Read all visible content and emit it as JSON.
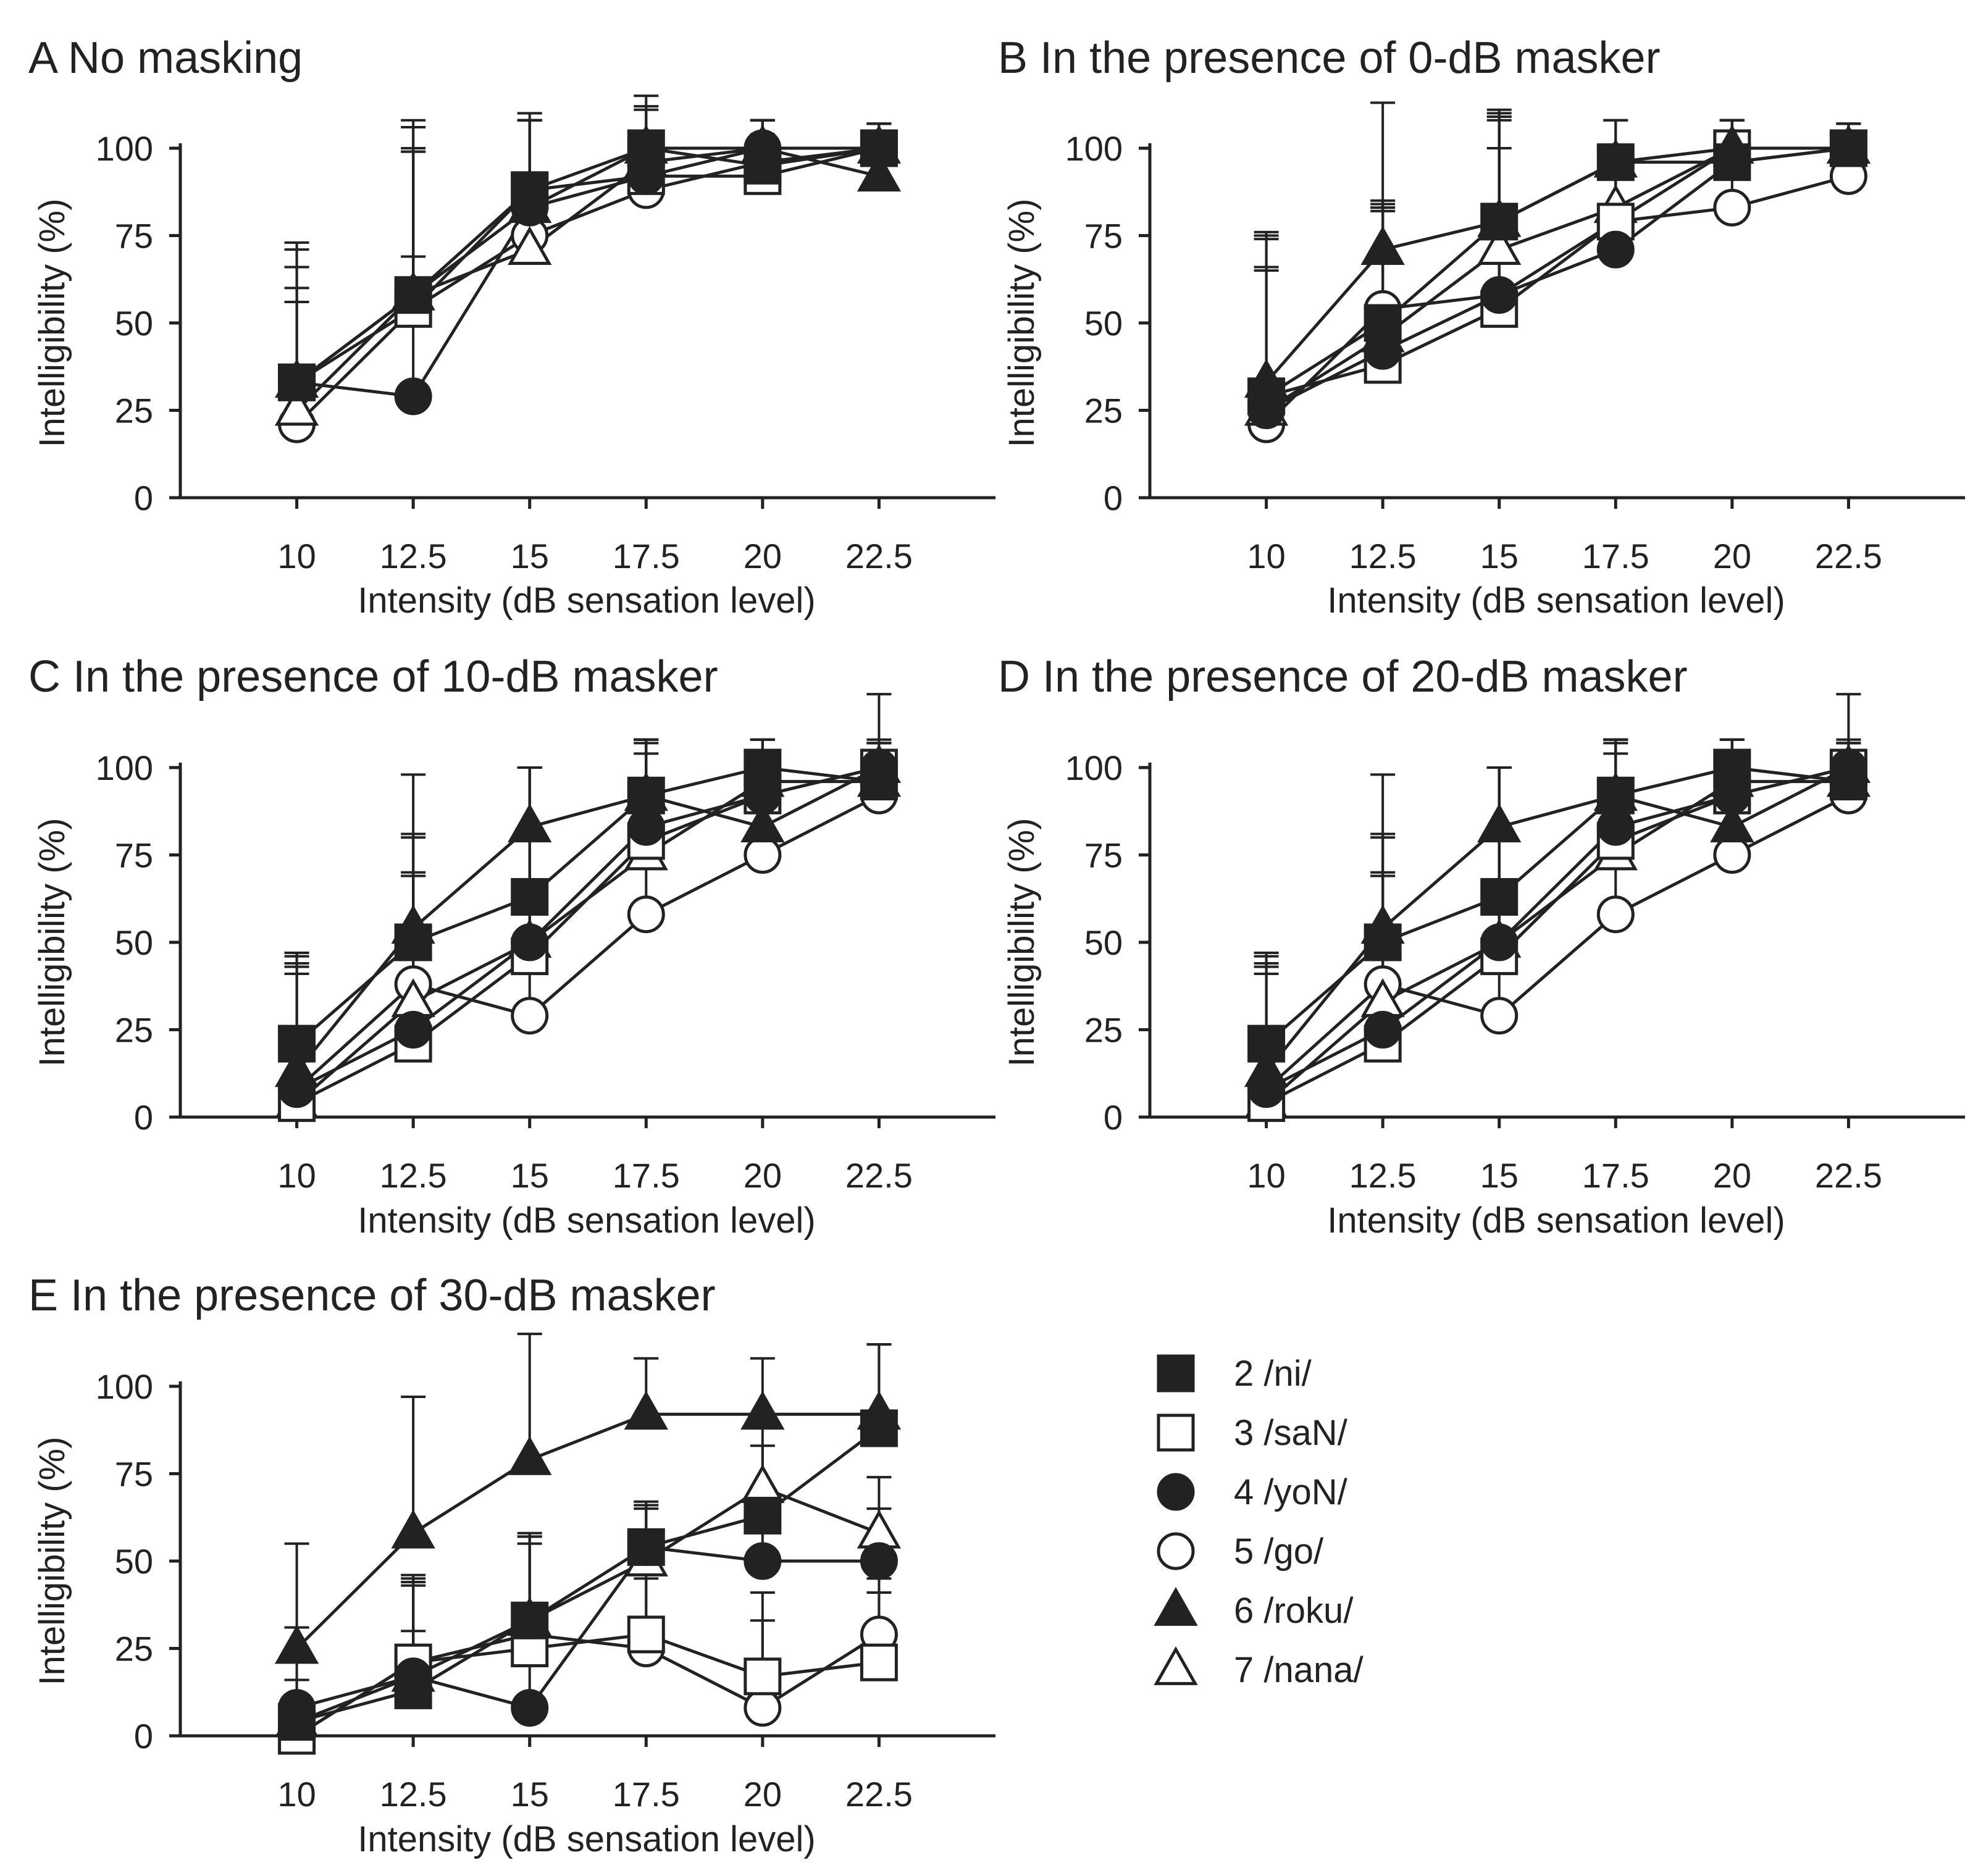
{
  "figure": {
    "legend": {
      "entries": [
        {
          "series": "ni",
          "label": "2 /ni/"
        },
        {
          "series": "saN",
          "label": "3 /saN/"
        },
        {
          "series": "yoN",
          "label": "4 /yoN/"
        },
        {
          "series": "go",
          "label": "5 /go/"
        },
        {
          "series": "roku",
          "label": "6 /roku/"
        },
        {
          "series": "nana",
          "label": "7 /nana/"
        }
      ]
    },
    "series_markers": {
      "ni": {
        "shape": "square",
        "filled": true
      },
      "saN": {
        "shape": "square",
        "filled": false
      },
      "yoN": {
        "shape": "circle",
        "filled": true
      },
      "go": {
        "shape": "circle",
        "filled": false
      },
      "roku": {
        "shape": "triangle",
        "filled": true
      },
      "nana": {
        "shape": "triangle",
        "filled": false
      }
    },
    "colors": {
      "ink": "#222222",
      "background": "#ffffff"
    }
  },
  "chart_data": [
    {
      "id": "A",
      "type": "line",
      "title": "A No masking",
      "xlabel": "Intensity (dB sensation level)",
      "ylabel": "Intelligibility (%)",
      "x": [
        10,
        12.5,
        15,
        17.5,
        20,
        22.5
      ],
      "x_tick_labels": [
        "10",
        "12.5",
        "15",
        "17.5",
        "20",
        "22.5"
      ],
      "y_ticks": [
        0,
        25,
        50,
        75,
        100
      ],
      "xlim": [
        7.5,
        25
      ],
      "ylim": [
        0,
        100
      ],
      "series": [
        {
          "name": "ni",
          "values": [
            33,
            58,
            88,
            100,
            95,
            100
          ],
          "errors": [
            40,
            42,
            22,
            15,
            13,
            7
          ]
        },
        {
          "name": "saN",
          "values": [
            33,
            54,
            88,
            92,
            92,
            100
          ],
          "errors": [
            38,
            45,
            20,
            12,
            8,
            7
          ]
        },
        {
          "name": "yoN",
          "values": [
            33,
            29,
            83,
            92,
            100,
            100
          ],
          "errors": [
            33,
            40,
            25,
            12,
            8,
            7
          ]
        },
        {
          "name": "go",
          "values": [
            21,
            54,
            75,
            88,
            96,
            100
          ],
          "errors": [
            35,
            45,
            33,
            12,
            8,
            7
          ]
        },
        {
          "name": "roku",
          "values": [
            33,
            58,
            83,
            100,
            100,
            92
          ],
          "errors": [
            33,
            50,
            25,
            12,
            8,
            7
          ]
        },
        {
          "name": "nana",
          "values": [
            25,
            58,
            71,
            96,
            100,
            100
          ],
          "errors": [
            35,
            48,
            37,
            15,
            8,
            7
          ]
        }
      ]
    },
    {
      "id": "B",
      "type": "line",
      "title": "B In the presence of 0-dB masker",
      "xlabel": "Intensity (dB sensation level)",
      "ylabel": "Intelligibility (%)",
      "x": [
        10,
        12.5,
        15,
        17.5,
        20,
        22.5
      ],
      "x_tick_labels": [
        "10",
        "12.5",
        "15",
        "17.5",
        "20",
        "22.5"
      ],
      "y_ticks": [
        0,
        25,
        50,
        75,
        100
      ],
      "xlim": [
        7.5,
        25
      ],
      "ylim": [
        0,
        100
      ],
      "series": [
        {
          "name": "ni",
          "values": [
            29,
            50,
            79,
            96,
            96,
            100
          ],
          "errors": [
            47,
            33,
            30,
            12,
            12,
            7
          ]
        },
        {
          "name": "saN",
          "values": [
            29,
            38,
            54,
            79,
            100,
            100
          ],
          "errors": [
            45,
            46,
            54,
            15,
            8,
            7
          ]
        },
        {
          "name": "yoN",
          "values": [
            25,
            42,
            58,
            71,
            96,
            100
          ],
          "errors": [
            50,
            43,
            52,
            22,
            12,
            7
          ]
        },
        {
          "name": "go",
          "values": [
            21,
            54,
            58,
            79,
            83,
            92
          ],
          "errors": [
            45,
            28,
            42,
            22,
            12,
            7
          ]
        },
        {
          "name": "roku",
          "values": [
            33,
            71,
            79,
            96,
            100,
            100
          ],
          "errors": [
            42,
            42,
            30,
            12,
            8,
            7
          ]
        },
        {
          "name": "nana",
          "values": [
            25,
            46,
            71,
            83,
            100,
            100
          ],
          "errors": [
            40,
            37,
            40,
            15,
            8,
            7
          ]
        }
      ]
    },
    {
      "id": "C",
      "type": "line",
      "title": "C In the presence of 10-dB masker",
      "xlabel": "Intensity (dB sensation level)",
      "ylabel": "Intelligibility (%)",
      "x": [
        10,
        12.5,
        15,
        17.5,
        20,
        22.5
      ],
      "x_tick_labels": [
        "10",
        "12.5",
        "15",
        "17.5",
        "20",
        "22.5"
      ],
      "y_ticks": [
        0,
        25,
        50,
        75,
        100
      ],
      "xlim": [
        7.5,
        25
      ],
      "ylim": [
        0,
        100
      ],
      "series": [
        {
          "name": "ni",
          "values": [
            21,
            50,
            63,
            92,
            100,
            96
          ],
          "errors": [
            26,
            30,
            37,
            16,
            8,
            11
          ]
        },
        {
          "name": "saN",
          "values": [
            4,
            21,
            46,
            79,
            92,
            100
          ],
          "errors": [
            43,
            48,
            54,
            28,
            12,
            7
          ]
        },
        {
          "name": "yoN",
          "values": [
            8,
            25,
            50,
            83,
            92,
            100
          ],
          "errors": [
            38,
            45,
            50,
            25,
            12,
            7
          ]
        },
        {
          "name": "go",
          "values": [
            8,
            38,
            29,
            58,
            75,
            92
          ],
          "errors": [
            33,
            60,
            71,
            50,
            33,
            16
          ]
        },
        {
          "name": "roku",
          "values": [
            13,
            54,
            83,
            92,
            83,
            100
          ],
          "errors": [
            30,
            27,
            17,
            12,
            17,
            7
          ]
        },
        {
          "name": "nana",
          "values": [
            4,
            33,
            50,
            75,
            96,
            96
          ],
          "errors": [
            40,
            36,
            50,
            33,
            12,
            25
          ]
        }
      ]
    },
    {
      "id": "D",
      "type": "line",
      "title": "D In the presence of 20-dB masker",
      "xlabel": "Intensity (dB sensation level)",
      "ylabel": "Intelligibility (%)",
      "x": [
        10,
        12.5,
        15,
        17.5,
        20,
        22.5
      ],
      "x_tick_labels": [
        "10",
        "12.5",
        "15",
        "17.5",
        "20",
        "22.5"
      ],
      "y_ticks": [
        0,
        25,
        50,
        75,
        100
      ],
      "xlim": [
        7.5,
        25
      ],
      "ylim": [
        0,
        100
      ],
      "series": [
        {
          "name": "ni",
          "values": [
            21,
            50,
            63,
            92,
            100,
            96
          ],
          "errors": [
            26,
            30,
            37,
            16,
            8,
            11
          ]
        },
        {
          "name": "saN",
          "values": [
            4,
            21,
            46,
            79,
            92,
            100
          ],
          "errors": [
            43,
            48,
            54,
            28,
            12,
            7
          ]
        },
        {
          "name": "yoN",
          "values": [
            8,
            25,
            50,
            83,
            92,
            100
          ],
          "errors": [
            38,
            45,
            50,
            25,
            12,
            7
          ]
        },
        {
          "name": "go",
          "values": [
            8,
            38,
            29,
            58,
            75,
            92
          ],
          "errors": [
            33,
            60,
            71,
            50,
            33,
            16
          ]
        },
        {
          "name": "roku",
          "values": [
            13,
            54,
            83,
            92,
            83,
            100
          ],
          "errors": [
            30,
            27,
            17,
            12,
            17,
            7
          ]
        },
        {
          "name": "nana",
          "values": [
            4,
            33,
            50,
            75,
            96,
            96
          ],
          "errors": [
            40,
            36,
            50,
            33,
            12,
            25
          ]
        }
      ]
    },
    {
      "id": "E",
      "type": "line",
      "title": "E In the presence of 30-dB masker",
      "xlabel": "Intensity (dB sensation level)",
      "ylabel": "Intelligibility (%)",
      "x": [
        10,
        12.5,
        15,
        17.5,
        20,
        22.5
      ],
      "x_tick_labels": [
        "10",
        "12.5",
        "15",
        "17.5",
        "20",
        "22.5"
      ],
      "y_ticks": [
        0,
        25,
        50,
        75,
        100
      ],
      "xlim": [
        7.5,
        25
      ],
      "ylim": [
        0,
        100
      ],
      "series": [
        {
          "name": "ni",
          "values": [
            4,
            13,
            33,
            54,
            63,
            88
          ],
          "errors": [
            12,
            17,
            25,
            13,
            20,
            24
          ]
        },
        {
          "name": "saN",
          "values": [
            0,
            21,
            25,
            29,
            17,
            21
          ],
          "errors": [
            8,
            25,
            30,
            20,
            16,
            20
          ]
        },
        {
          "name": "yoN",
          "values": [
            8,
            17,
            8,
            54,
            50,
            50
          ],
          "errors": [
            8,
            27,
            25,
            12,
            20,
            15
          ]
        },
        {
          "name": "go",
          "values": [
            0,
            21,
            29,
            25,
            8,
            29
          ],
          "errors": [
            8,
            22,
            28,
            20,
            33,
            16
          ]
        },
        {
          "name": "roku",
          "values": [
            25,
            58,
            79,
            92,
            92,
            92
          ],
          "errors": [
            30,
            39,
            36,
            16,
            16,
            20
          ]
        },
        {
          "name": "nana",
          "values": [
            4,
            17,
            33,
            50,
            71,
            58
          ],
          "errors": [
            27,
            28,
            24,
            15,
            17,
            16
          ]
        }
      ]
    }
  ]
}
